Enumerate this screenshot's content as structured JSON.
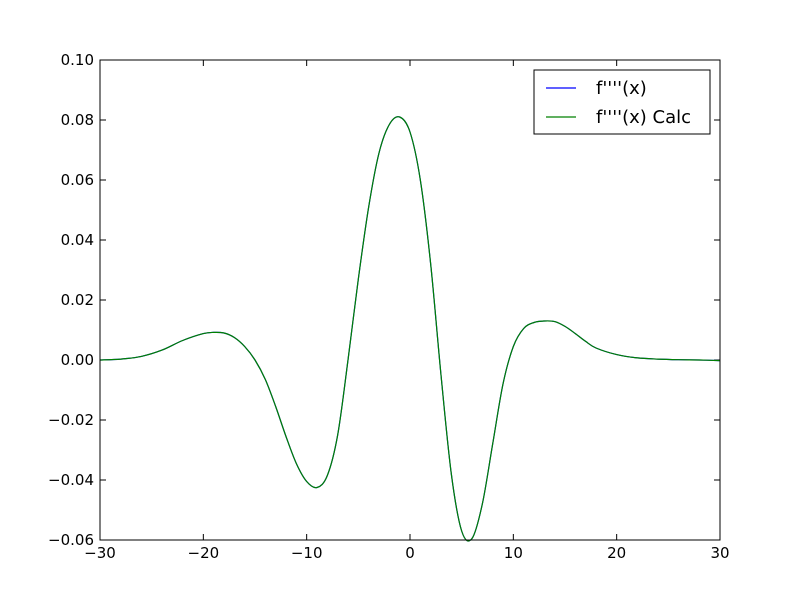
{
  "chart_data": {
    "type": "line",
    "title": "",
    "xlabel": "",
    "ylabel": "",
    "xlim": [
      -30,
      30
    ],
    "ylim": [
      -0.06,
      0.1
    ],
    "grid": false,
    "legend_position": "top-right",
    "x_ticks": [
      -30,
      -20,
      -10,
      0,
      10,
      20,
      30
    ],
    "x_tick_labels": [
      "−30",
      "−20",
      "−10",
      "0",
      "10",
      "20",
      "30"
    ],
    "y_ticks": [
      -0.06,
      -0.04,
      -0.02,
      0.0,
      0.02,
      0.04,
      0.06,
      0.08,
      0.1
    ],
    "y_tick_labels": [
      "−0.06",
      "−0.04",
      "−0.02",
      "0.00",
      "0.02",
      "0.04",
      "0.06",
      "0.08",
      "0.10"
    ],
    "x": [
      -30,
      -28,
      -26,
      -24,
      -22,
      -20,
      -19,
      -18,
      -17,
      -16,
      -15,
      -14,
      -13,
      -12,
      -11,
      -10,
      -9,
      -8,
      -7,
      -6,
      -5,
      -4,
      -3,
      -2,
      -1,
      0,
      1,
      2,
      3,
      4,
      5,
      6,
      7,
      8,
      9,
      10,
      11,
      12,
      13,
      14,
      15,
      16,
      17,
      18,
      20,
      22,
      24,
      26,
      28,
      30
    ],
    "series": [
      {
        "name": "f''''(x)",
        "color": "#0000ff",
        "values": [
          0.0,
          0.0003,
          0.0012,
          0.0033,
          0.0065,
          0.0088,
          0.0092,
          0.009,
          0.0075,
          0.0045,
          0.0,
          -0.0065,
          -0.0155,
          -0.0255,
          -0.0345,
          -0.0405,
          -0.0425,
          -0.0385,
          -0.025,
          0.0,
          0.027,
          0.051,
          0.069,
          0.0785,
          0.081,
          0.076,
          0.06,
          0.032,
          -0.005,
          -0.038,
          -0.057,
          -0.0595,
          -0.048,
          -0.028,
          -0.008,
          0.0045,
          0.0105,
          0.0125,
          0.013,
          0.0128,
          0.0112,
          0.0088,
          0.0062,
          0.004,
          0.0018,
          0.0007,
          0.0003,
          0.0001,
          0.0,
          -0.0002
        ]
      },
      {
        "name": "f''''(x) Calc",
        "color": "#008000",
        "values": [
          0.0,
          0.0003,
          0.0012,
          0.0033,
          0.0065,
          0.0088,
          0.0092,
          0.009,
          0.0075,
          0.0045,
          0.0,
          -0.0065,
          -0.0155,
          -0.0255,
          -0.0345,
          -0.0405,
          -0.0425,
          -0.0385,
          -0.025,
          0.0,
          0.027,
          0.051,
          0.069,
          0.0785,
          0.081,
          0.076,
          0.06,
          0.032,
          -0.005,
          -0.038,
          -0.057,
          -0.0595,
          -0.048,
          -0.028,
          -0.008,
          0.0045,
          0.0105,
          0.0125,
          0.013,
          0.0128,
          0.0112,
          0.0088,
          0.0062,
          0.004,
          0.0018,
          0.0007,
          0.0003,
          0.0001,
          0.0,
          -0.0002
        ]
      }
    ],
    "legend": [
      "f''''(x)",
      "f''''(x) Calc"
    ]
  }
}
